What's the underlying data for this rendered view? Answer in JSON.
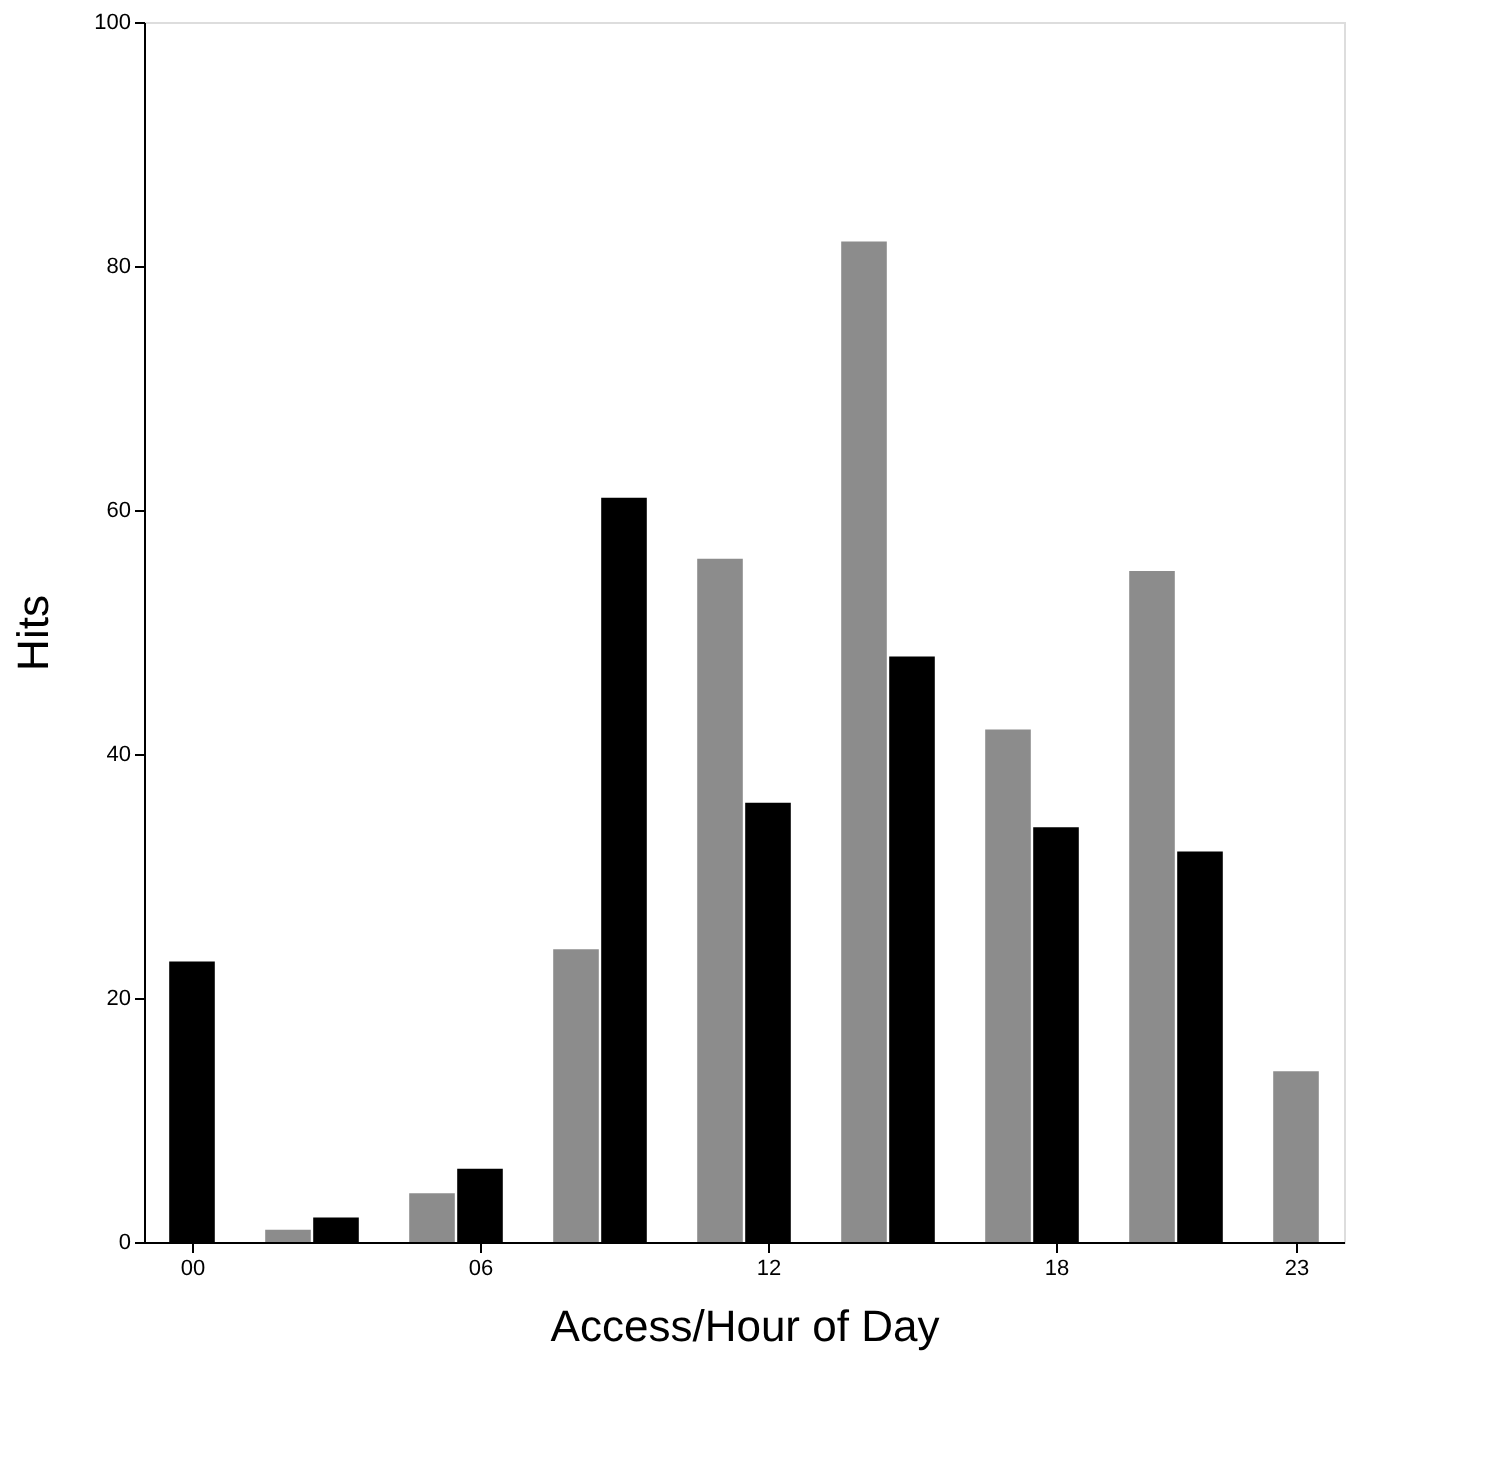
{
  "chart_data": {
    "type": "bar",
    "xlabel": "Access/Hour of Day",
    "ylabel": "Hits",
    "xlim": [
      -1,
      24
    ],
    "xticks": [
      {
        "value": 0,
        "label": "00"
      },
      {
        "value": 6,
        "label": "06"
      },
      12,
      18,
      23
    ],
    "ylim": [
      0,
      100
    ],
    "yticks": [
      0,
      20,
      40,
      60,
      80,
      100
    ],
    "grid": false,
    "series": [
      {
        "color": "#8c8c8c",
        "x": [
          2,
          5,
          8,
          11,
          14,
          17,
          20,
          23
        ],
        "values": [
          1,
          4,
          24,
          56,
          82,
          42,
          55,
          14
        ]
      },
      {
        "color": "#000000",
        "x": [
          0,
          3,
          6,
          9,
          12,
          15,
          18,
          21
        ],
        "values": [
          23,
          2,
          6,
          61,
          36,
          48,
          34,
          32
        ]
      }
    ]
  }
}
